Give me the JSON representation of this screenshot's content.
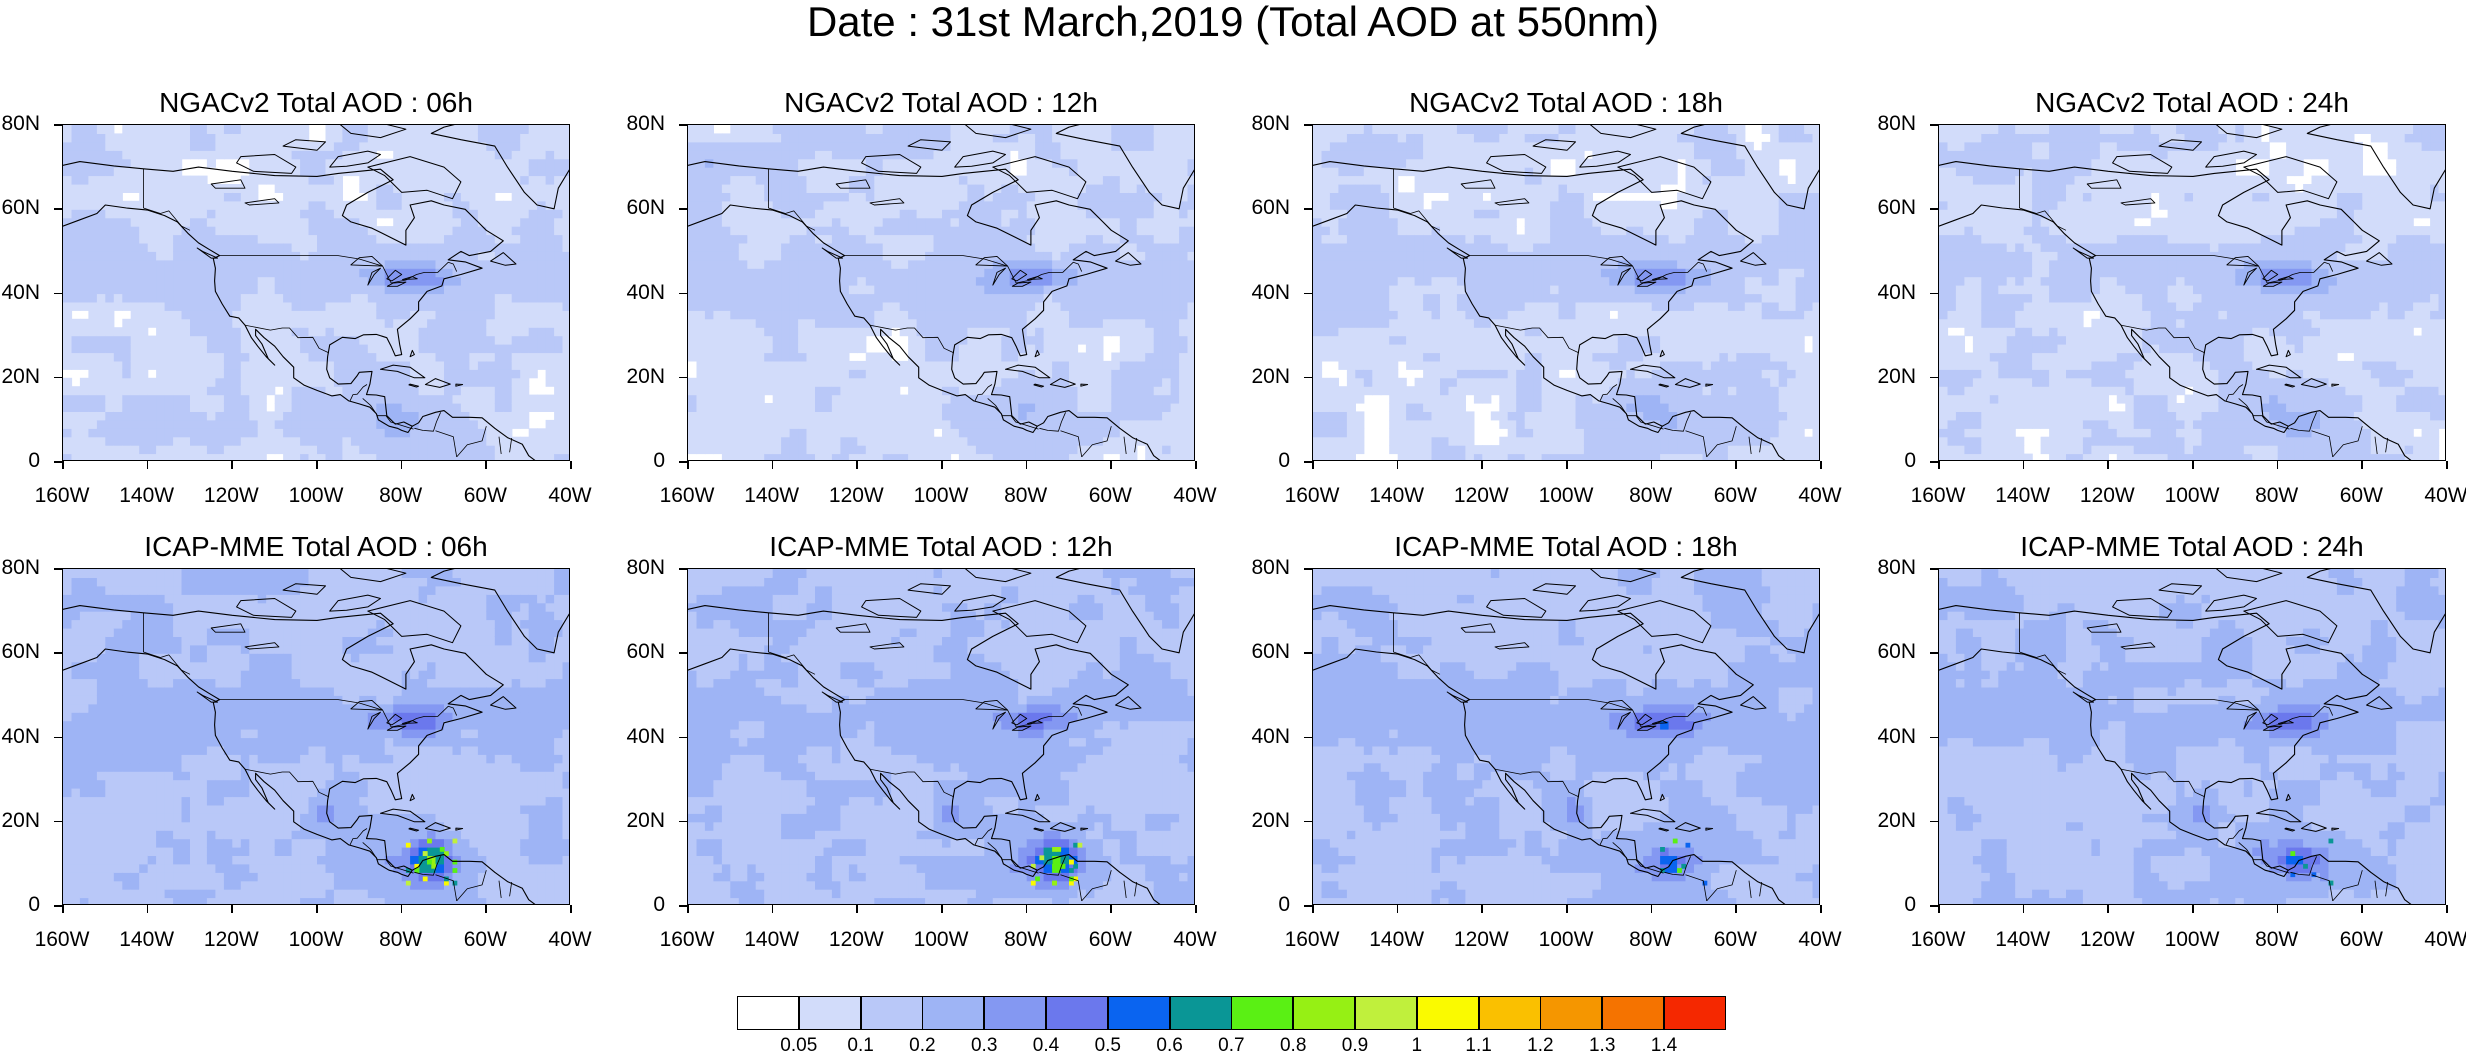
{
  "title": "Date : 31st March,2019 (Total AOD at 550nm)",
  "panels": [
    {
      "title": "NGACv2 Total AOD : 06h",
      "model": "ngac",
      "hotspot": 0
    },
    {
      "title": "NGACv2 Total AOD : 12h",
      "model": "ngac",
      "hotspot": 0
    },
    {
      "title": "NGACv2 Total AOD : 18h",
      "model": "ngac",
      "hotspot": 0
    },
    {
      "title": "NGACv2 Total AOD : 24h",
      "model": "ngac",
      "hotspot": 0
    },
    {
      "title": "ICAP-MME Total AOD : 06h",
      "model": "icap",
      "hotspot": 3
    },
    {
      "title": "ICAP-MME Total AOD : 12h",
      "model": "icap",
      "hotspot": 3
    },
    {
      "title": "ICAP-MME Total AOD : 18h",
      "model": "icap",
      "hotspot": 1
    },
    {
      "title": "ICAP-MME Total AOD : 24h",
      "model": "icap",
      "hotspot": 1
    }
  ],
  "axes": {
    "lat_ticks": [
      "80N",
      "60N",
      "40N",
      "20N",
      "0"
    ],
    "lon_ticks": [
      "160W",
      "140W",
      "120W",
      "100W",
      "80W",
      "60W",
      "40W"
    ],
    "lat_range": [
      0,
      80
    ],
    "lon_range": [
      -160,
      -40
    ]
  },
  "colorbar": {
    "colors": [
      "#ffffff",
      "#d2dcfa",
      "#b9c8f8",
      "#9eb4f5",
      "#8498f2",
      "#6b78ed",
      "#0a64f0",
      "#0a9696",
      "#5af014",
      "#96f014",
      "#c0f03c",
      "#fafa00",
      "#fac000",
      "#f59600",
      "#f57300",
      "#f52800"
    ],
    "labels": [
      "0.05",
      "0.1",
      "0.2",
      "0.3",
      "0.4",
      "0.5",
      "0.6",
      "0.7",
      "0.8",
      "0.9",
      "1",
      "1.1",
      "1.2",
      "1.3",
      "1.4"
    ]
  }
}
